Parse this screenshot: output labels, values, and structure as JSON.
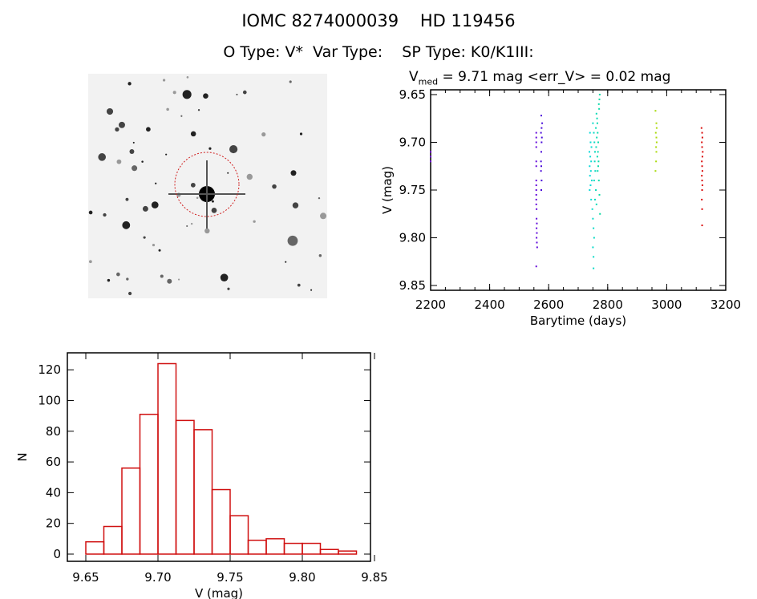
{
  "header": {
    "title": "IOMC 8274000039    HD 119456",
    "subtitle": "O Type: V*  Var Type:    SP Type: K0/K1III:",
    "vmed_label": "V",
    "vmed_sub": "med",
    "vmed_text": " = 9.71 mag <err_V> = 0.02 mag"
  },
  "colors": {
    "hist": "#d01010",
    "frame": "#000000",
    "sky_bg": "#f2f2f2",
    "circle": "#d02020"
  },
  "chart_data": [
    {
      "type": "scatter",
      "title": "V_med = 9.71 mag <err_V> = 0.02 mag",
      "xlabel": "Barytime (days)",
      "ylabel": "V (mag)",
      "xlim": [
        2200,
        3200
      ],
      "ylim": [
        9.855,
        9.645
      ],
      "xticks": [
        "2200",
        "2400",
        "2600",
        "2800",
        "3000",
        "3200"
      ],
      "yticks": [
        "9.65",
        "9.70",
        "9.75",
        "9.80",
        "9.85"
      ],
      "points": [
        [
          2200,
          9.71
        ],
        [
          2200,
          9.715
        ],
        [
          2200,
          9.72
        ],
        [
          2558,
          9.69
        ],
        [
          2558,
          9.695
        ],
        [
          2558,
          9.7
        ],
        [
          2558,
          9.705
        ],
        [
          2558,
          9.72
        ],
        [
          2558,
          9.725
        ],
        [
          2558,
          9.74
        ],
        [
          2558,
          9.745
        ],
        [
          2558,
          9.75
        ],
        [
          2558,
          9.755
        ],
        [
          2558,
          9.76
        ],
        [
          2558,
          9.765
        ],
        [
          2559,
          9.77
        ],
        [
          2559,
          9.78
        ],
        [
          2560,
          9.785
        ],
        [
          2559,
          9.79
        ],
        [
          2560,
          9.795
        ],
        [
          2559,
          9.8
        ],
        [
          2560,
          9.805
        ],
        [
          2561,
          9.81
        ],
        [
          2558,
          9.83
        ],
        [
          2575,
          9.672
        ],
        [
          2578,
          9.68
        ],
        [
          2576,
          9.685
        ],
        [
          2574,
          9.69
        ],
        [
          2577,
          9.695
        ],
        [
          2576,
          9.7
        ],
        [
          2575,
          9.71
        ],
        [
          2574,
          9.72
        ],
        [
          2575,
          9.725
        ],
        [
          2574,
          9.73
        ],
        [
          2576,
          9.74
        ],
        [
          2575,
          9.75
        ],
        [
          2740,
          9.69
        ],
        [
          2742,
          9.7
        ],
        [
          2745,
          9.705
        ],
        [
          2738,
          9.71
        ],
        [
          2741,
          9.715
        ],
        [
          2744,
          9.72
        ],
        [
          2739,
          9.725
        ],
        [
          2743,
          9.73
        ],
        [
          2740,
          9.735
        ],
        [
          2746,
          9.74
        ],
        [
          2742,
          9.745
        ],
        [
          2739,
          9.75
        ],
        [
          2744,
          9.76
        ],
        [
          2748,
          9.77
        ],
        [
          2750,
          9.78
        ],
        [
          2752,
          9.79
        ],
        [
          2754,
          9.8
        ],
        [
          2750,
          9.81
        ],
        [
          2752,
          9.82
        ],
        [
          2752,
          9.832
        ],
        [
          2750,
          9.68
        ],
        [
          2753,
          9.69
        ],
        [
          2755,
          9.7
        ],
        [
          2757,
          9.71
        ],
        [
          2756,
          9.72
        ],
        [
          2758,
          9.73
        ],
        [
          2754,
          9.74
        ],
        [
          2760,
          9.75
        ],
        [
          2757,
          9.76
        ],
        [
          2762,
          9.765
        ],
        [
          2762,
          9.67
        ],
        [
          2764,
          9.675
        ],
        [
          2765,
          9.68
        ],
        [
          2766,
          9.69
        ],
        [
          2768,
          9.7
        ],
        [
          2767,
          9.71
        ],
        [
          2769,
          9.72
        ],
        [
          2766,
          9.73
        ],
        [
          2770,
          9.74
        ],
        [
          2772,
          9.755
        ],
        [
          2770,
          9.66
        ],
        [
          2772,
          9.655
        ],
        [
          2773,
          9.65
        ],
        [
          2771,
          9.665
        ],
        [
          2774,
          9.775
        ],
        [
          2760,
          9.685
        ],
        [
          2763,
          9.695
        ],
        [
          2761,
          9.705
        ],
        [
          2765,
          9.715
        ],
        [
          2768,
          9.725
        ],
        [
          2962,
          9.667
        ],
        [
          2965,
          9.68
        ],
        [
          2966,
          9.685
        ],
        [
          2963,
          9.69
        ],
        [
          2965,
          9.695
        ],
        [
          2966,
          9.7
        ],
        [
          2964,
          9.705
        ],
        [
          2965,
          9.71
        ],
        [
          2964,
          9.72
        ],
        [
          2962,
          9.73
        ],
        [
          3118,
          9.685
        ],
        [
          3120,
          9.69
        ],
        [
          3121,
          9.695
        ],
        [
          3119,
          9.7
        ],
        [
          3120,
          9.705
        ],
        [
          3122,
          9.71
        ],
        [
          3121,
          9.715
        ],
        [
          3119,
          9.72
        ],
        [
          3120,
          9.725
        ],
        [
          3121,
          9.73
        ],
        [
          3119,
          9.735
        ],
        [
          3120,
          9.74
        ],
        [
          3121,
          9.745
        ],
        [
          3120,
          9.75
        ],
        [
          3119,
          9.76
        ],
        [
          3120,
          9.77
        ],
        [
          3120,
          9.787
        ]
      ]
    },
    {
      "type": "bar",
      "title": "",
      "xlabel": "V (mag)",
      "ylabel": "N",
      "xlim": [
        9.64,
        9.85
      ],
      "ylim": [
        0,
        130
      ],
      "xticks": [
        "9.65",
        "9.70",
        "9.75",
        "9.80",
        "9.85"
      ],
      "yticks": [
        "0",
        "20",
        "40",
        "60",
        "80",
        "100",
        "120"
      ],
      "bin_start": 9.65,
      "bin_width": 0.0125,
      "values": [
        8,
        18,
        56,
        91,
        124,
        87,
        81,
        42,
        25,
        9,
        10,
        7,
        7,
        3,
        2
      ]
    }
  ]
}
